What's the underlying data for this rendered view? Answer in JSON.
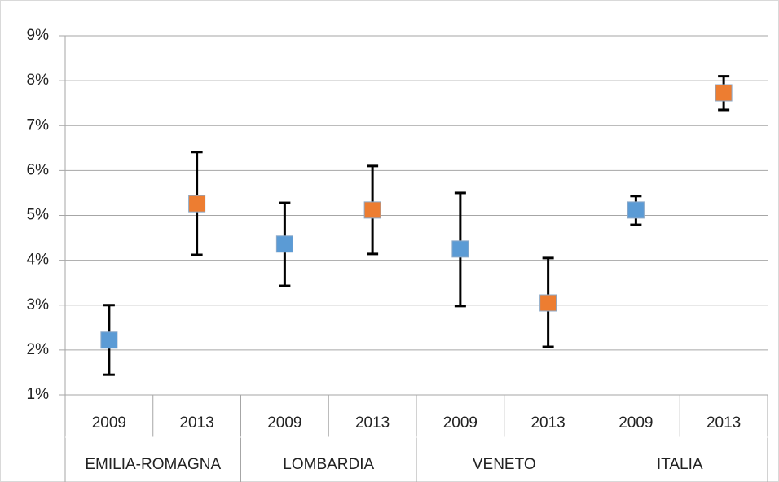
{
  "chart_data": {
    "type": "errorbar",
    "ylim": [
      1,
      9
    ],
    "yticks": [
      {
        "value": 1,
        "label": "1%"
      },
      {
        "value": 2,
        "label": "2%"
      },
      {
        "value": 3,
        "label": "3%"
      },
      {
        "value": 4,
        "label": "4%"
      },
      {
        "value": 5,
        "label": "5%"
      },
      {
        "value": 6,
        "label": "6%"
      },
      {
        "value": 7,
        "label": "7%"
      },
      {
        "value": 8,
        "label": "8%"
      },
      {
        "value": 9,
        "label": "9%"
      }
    ],
    "grid": true,
    "categories": [
      "2009",
      "2013",
      "2009",
      "2013",
      "2009",
      "2013",
      "2009",
      "2013"
    ],
    "groups": [
      "EMILIA-ROMAGNA",
      "LOMBARDIA",
      "VENETO",
      "ITALIA"
    ],
    "series": [
      {
        "color": "#5b9bd5",
        "values": [
          2.22,
          null,
          4.36,
          null,
          4.25,
          null,
          5.12,
          null
        ],
        "low": [
          1.45,
          null,
          3.43,
          null,
          2.98,
          null,
          4.79,
          null
        ],
        "high": [
          3.0,
          null,
          5.28,
          null,
          5.5,
          null,
          5.43,
          null
        ]
      },
      {
        "color": "#ed7d31",
        "values": [
          null,
          5.26,
          null,
          5.12,
          null,
          3.05,
          null,
          7.73
        ],
        "low": [
          null,
          4.12,
          null,
          4.14,
          null,
          2.07,
          null,
          7.35
        ],
        "high": [
          null,
          6.41,
          null,
          6.1,
          null,
          4.05,
          null,
          8.1
        ]
      }
    ]
  }
}
